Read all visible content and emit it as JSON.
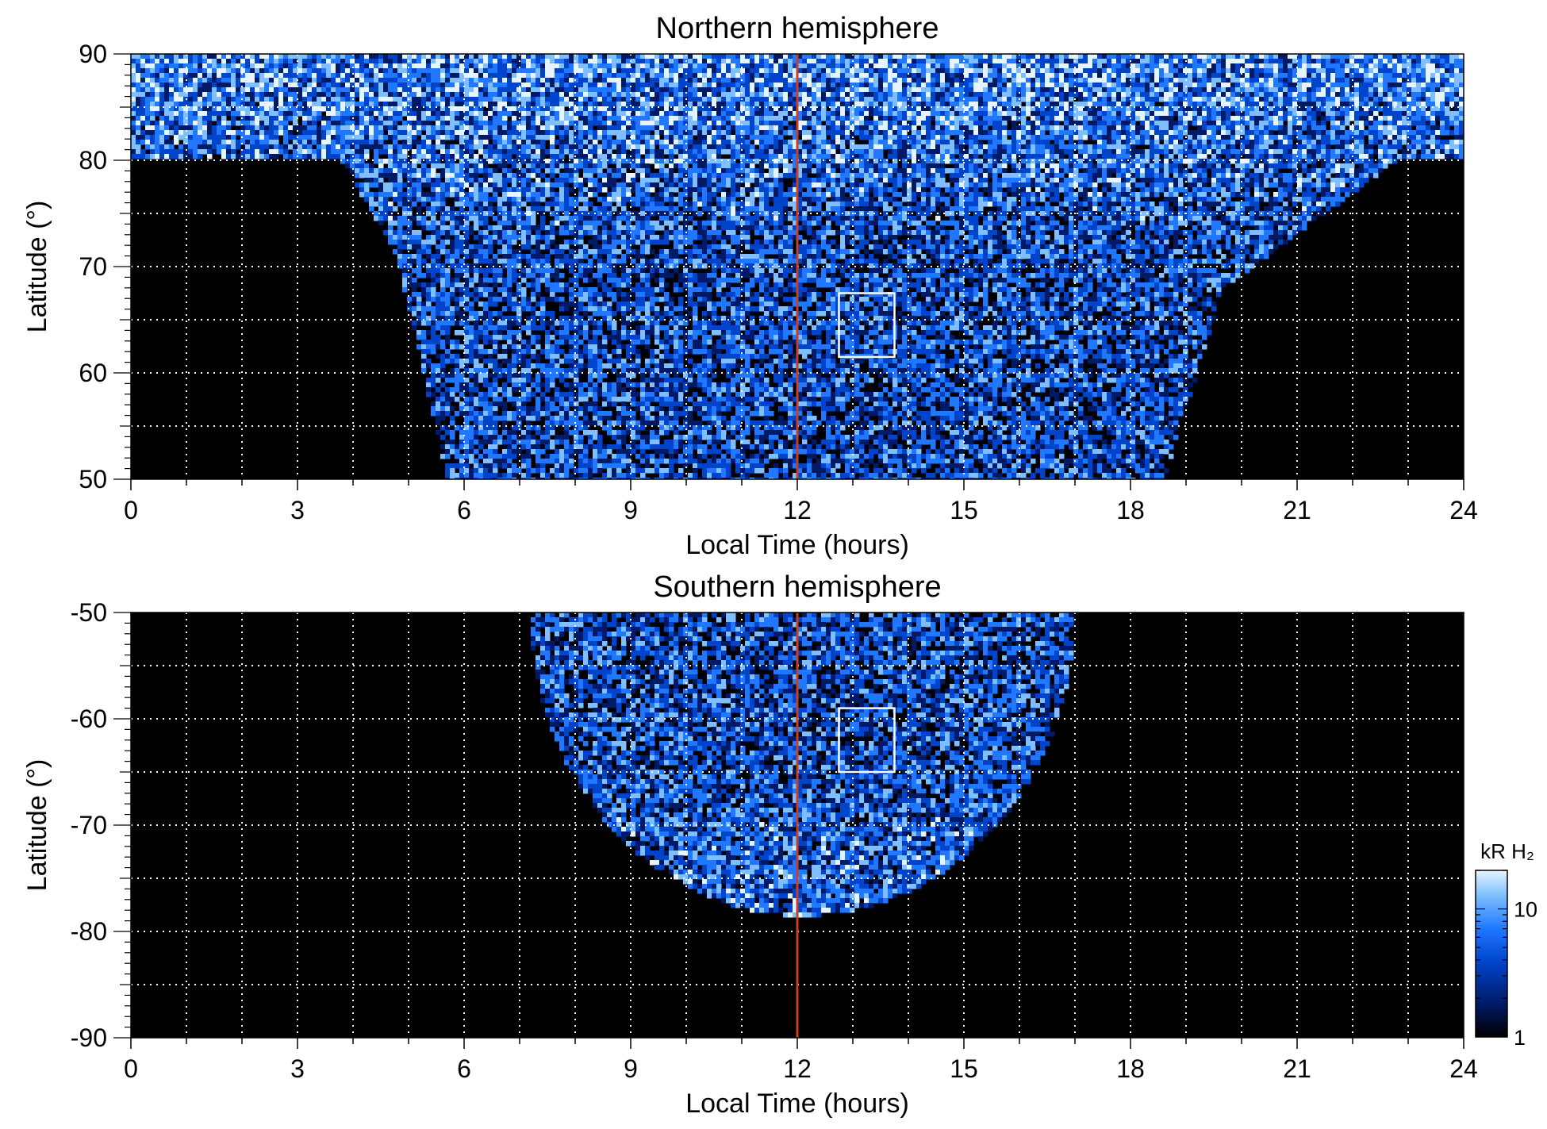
{
  "chart_data": [
    {
      "type": "heatmap",
      "title": "Northern hemisphere",
      "xlabel": "Local Time (hours)",
      "ylabel": "Latitude (°)",
      "xlim": [
        0,
        24
      ],
      "ylim": [
        50,
        90
      ],
      "xticks": [
        0,
        3,
        6,
        9,
        12,
        15,
        18,
        21,
        24
      ],
      "yticks": [
        50,
        60,
        70,
        80,
        90
      ],
      "grid": true,
      "grid_x_step_hours": 1,
      "grid_y_step_deg": 5,
      "noon_line_local_time": 12,
      "noon_line_color": "#c8401e",
      "highlight_box": {
        "lt_range": [
          12.75,
          13.75
        ],
        "lat_range": [
          61.5,
          67.5
        ]
      },
      "coverage_note_visible": false,
      "data_region": {
        "dayside_lower_lat_boundary": [
          {
            "lt": 4.7,
            "lat": 80
          },
          {
            "lt": 5.0,
            "lat": 65
          },
          {
            "lt": 5.6,
            "lat": 55
          },
          {
            "lt": 5.7,
            "lat": 50
          },
          {
            "lt": 18.6,
            "lat": 50
          },
          {
            "lt": 18.7,
            "lat": 55
          },
          {
            "lt": 19.2,
            "lat": 65
          },
          {
            "lt": 20.0,
            "lat": 72
          },
          {
            "lt": 22.5,
            "lat": 80
          }
        ],
        "polar_cap_min_lat": 80
      }
    },
    {
      "type": "heatmap",
      "title": "Southern hemisphere",
      "xlabel": "Local Time (hours)",
      "ylabel": "Latitude (°)",
      "xlim": [
        0,
        24
      ],
      "ylim": [
        -90,
        -50
      ],
      "xticks": [
        0,
        3,
        6,
        9,
        12,
        15,
        18,
        21,
        24
      ],
      "yticks": [
        -50,
        -60,
        -70,
        -80,
        -90
      ],
      "grid": true,
      "grid_x_step_hours": 1,
      "grid_y_step_deg": 5,
      "noon_line_local_time": 12,
      "noon_line_color": "#c8401e",
      "highlight_box": {
        "lt_range": [
          12.75,
          13.75
        ],
        "lat_range": [
          -65,
          -59
        ]
      },
      "data_region": {
        "boundary": [
          {
            "lt": 7.2,
            "lat": -50
          },
          {
            "lt": 8.3,
            "lat": -60
          },
          {
            "lt": 9.5,
            "lat": -70
          },
          {
            "lt": 11.0,
            "lat": -77
          },
          {
            "lt": 12.0,
            "lat": -78.5
          },
          {
            "lt": 13.5,
            "lat": -77.5
          },
          {
            "lt": 15.0,
            "lat": -72
          },
          {
            "lt": 16.2,
            "lat": -63
          },
          {
            "lt": 17.0,
            "lat": -50
          }
        ]
      }
    }
  ],
  "colorbar": {
    "label": "kR H₂",
    "scale": "log",
    "range": [
      1,
      20
    ],
    "tick_labels": [
      "10",
      "1"
    ],
    "colors": [
      "#000000",
      "#001a66",
      "#0044cc",
      "#1f78ff",
      "#7fbfff",
      "#e6f4ff"
    ]
  }
}
